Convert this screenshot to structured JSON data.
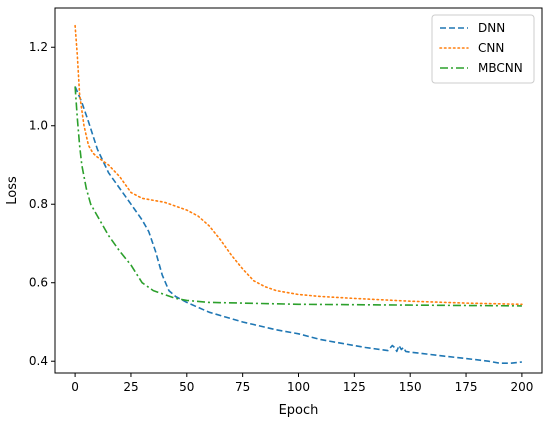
{
  "chart_data": {
    "type": "line",
    "title": "",
    "xlabel": "Epoch",
    "ylabel": "Loss",
    "xlim": [
      -9,
      209
    ],
    "ylim": [
      0.37,
      1.3
    ],
    "xticks": [
      0,
      25,
      50,
      75,
      100,
      125,
      150,
      175,
      200
    ],
    "xtick_labels": [
      "0",
      "25",
      "50",
      "75",
      "100",
      "125",
      "150",
      "175",
      "200"
    ],
    "yticks": [
      0.4,
      0.6,
      0.8,
      1.0,
      1.2
    ],
    "ytick_labels": [
      "0.4",
      "0.6",
      "0.8",
      "1.0",
      "1.2"
    ],
    "grid": false,
    "legend_position": "top-right",
    "series": [
      {
        "name": "DNN",
        "color": "#1f77b4",
        "style": "dashed",
        "x": [
          0,
          3,
          6,
          10,
          15,
          20,
          25,
          30,
          33,
          36,
          39,
          42,
          45,
          50,
          60,
          75,
          90,
          100,
          110,
          120,
          130,
          140,
          142,
          143,
          144,
          145,
          146,
          147,
          148,
          150,
          155,
          165,
          175,
          185,
          190,
          195,
          200
        ],
        "y": [
          1.1,
          1.06,
          1.01,
          0.94,
          0.88,
          0.84,
          0.8,
          0.76,
          0.73,
          0.68,
          0.62,
          0.58,
          0.565,
          0.55,
          0.525,
          0.5,
          0.48,
          0.47,
          0.455,
          0.445,
          0.435,
          0.427,
          0.44,
          0.435,
          0.425,
          0.44,
          0.43,
          0.435,
          0.425,
          0.423,
          0.42,
          0.413,
          0.407,
          0.4,
          0.395,
          0.395,
          0.398
        ]
      },
      {
        "name": "CNN",
        "color": "#ff7f0e",
        "style": "dotted",
        "x": [
          0,
          1,
          2,
          4,
          6,
          8,
          10,
          15,
          20,
          25,
          30,
          40,
          50,
          55,
          60,
          65,
          70,
          75,
          80,
          85,
          90,
          100,
          110,
          125,
          150,
          175,
          200
        ],
        "y": [
          1.255,
          1.18,
          1.08,
          1.0,
          0.95,
          0.93,
          0.92,
          0.9,
          0.87,
          0.83,
          0.815,
          0.805,
          0.785,
          0.77,
          0.745,
          0.71,
          0.67,
          0.635,
          0.605,
          0.59,
          0.58,
          0.57,
          0.565,
          0.56,
          0.553,
          0.548,
          0.545
        ]
      },
      {
        "name": "MBCNN",
        "color": "#2ca02c",
        "style": "dashdot",
        "x": [
          0,
          1,
          2,
          3,
          5,
          7,
          10,
          15,
          20,
          25,
          30,
          35,
          40,
          45,
          50,
          60,
          75,
          100,
          125,
          150,
          175,
          200
        ],
        "y": [
          1.1,
          1.02,
          0.95,
          0.9,
          0.84,
          0.8,
          0.77,
          0.72,
          0.68,
          0.645,
          0.6,
          0.58,
          0.57,
          0.56,
          0.555,
          0.55,
          0.548,
          0.545,
          0.544,
          0.543,
          0.542,
          0.541
        ]
      }
    ]
  }
}
